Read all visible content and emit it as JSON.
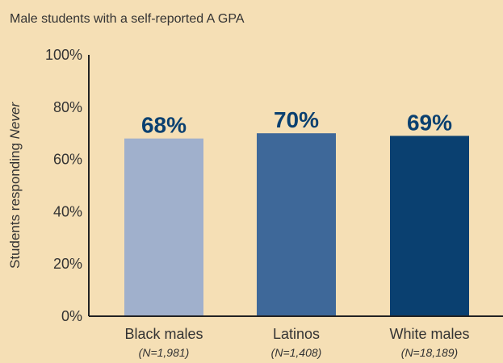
{
  "chart_data": {
    "type": "bar",
    "title": "Male students with a self-reported A GPA",
    "ylabel": {
      "prefix": "Students responding ",
      "emphasis": "Never"
    },
    "xlabel": "",
    "ylim": [
      0,
      100
    ],
    "yticks": [
      0,
      20,
      40,
      60,
      80,
      100
    ],
    "ytick_suffix": "%",
    "grid": false,
    "categories": [
      "Black males",
      "Latinos",
      "White males"
    ],
    "sample_sizes": [
      "(N=1,981)",
      "(N=1,408)",
      "(N=18,189)"
    ],
    "values": [
      68,
      70,
      69
    ],
    "data_labels": [
      "68%",
      "70%",
      "69%"
    ],
    "bar_colors": [
      "#a0b0cc",
      "#3e6899",
      "#0a4070"
    ],
    "label_color": "#0a4070",
    "axis_color": "#222222",
    "background": "#f5dfb5"
  }
}
